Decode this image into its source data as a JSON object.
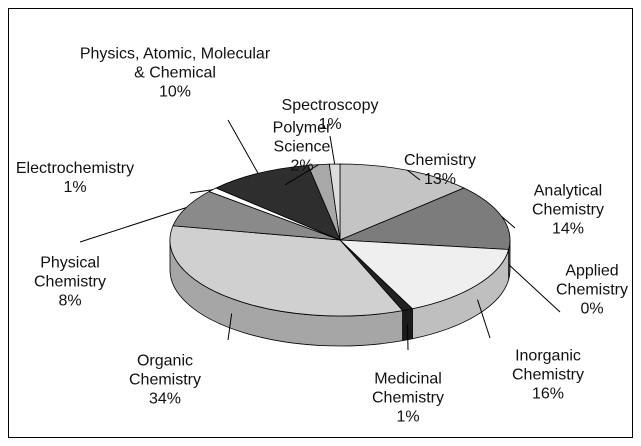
{
  "chart_data": {
    "type": "pie3d",
    "categories": [
      "Chemistry",
      "Analytical Chemistry",
      "Applied Chemistry",
      "Inorganic Chemistry",
      "Medicinal Chemistry",
      "Organic Chemistry",
      "Physical Chemistry",
      "Electrochemistry",
      "Physics, Atomic, Molecular & Chemical",
      "Polymer Science",
      "Spectroscopy"
    ],
    "values": [
      13,
      14,
      0,
      16,
      1,
      34,
      8,
      1,
      10,
      2,
      1
    ],
    "value_labels": [
      "13%",
      "14%",
      "0%",
      "16%",
      "1%",
      "34%",
      "8%",
      "1%",
      "10%",
      "2%",
      "1%"
    ],
    "colors": [
      "#c4c4c4",
      "#7c7c7c",
      "#000000",
      "#efefef",
      "#222222",
      "#d0d0d0",
      "#8a8a8a",
      "#ffffff",
      "#2e2e2e",
      "#a8a8a8",
      "#dcdcdc"
    ]
  }
}
